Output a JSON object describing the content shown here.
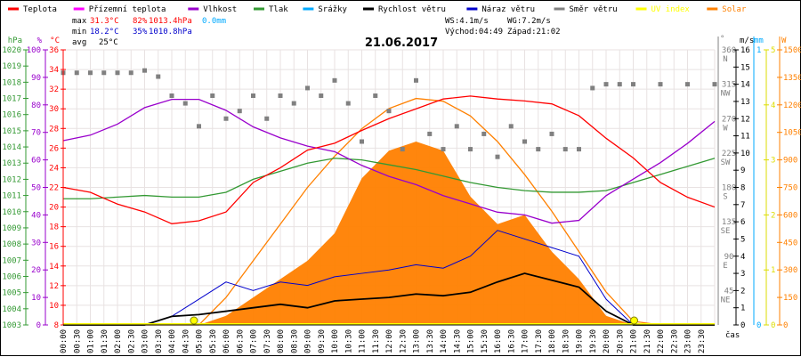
{
  "chart_data": {
    "type": "line",
    "title": "21.06.2017",
    "legend": [
      {
        "name": "Teplota",
        "color": "#ff0000"
      },
      {
        "name": "Přízemní teplota",
        "color": "#ff00ff"
      },
      {
        "name": "Vlhkost",
        "color": "#9900cc"
      },
      {
        "name": "Tlak",
        "color": "#339933"
      },
      {
        "name": "Srážky",
        "color": "#00aaff"
      },
      {
        "name": "Rychlost větru",
        "color": "#000000"
      },
      {
        "name": "Náraz větru",
        "color": "#0000cc"
      },
      {
        "name": "Směr větru",
        "color": "#808080"
      },
      {
        "name": "UV index",
        "color": "#ffff00"
      },
      {
        "name": "Solar",
        "color": "#ff8000"
      }
    ],
    "stats": {
      "max_label": "max",
      "max_temp": "31.3°C",
      "max_hum": "82%",
      "max_press": "1013.4hPa",
      "rain": "0.0mm",
      "min_label": "min",
      "min_temp": "18.2°C",
      "min_hum": "35%",
      "min_press": "1010.8hPa",
      "avg_label": "avg",
      "avg_temp": "25°C",
      "ws": "WS:4.1m/s",
      "wg": "WG:7.2m/s",
      "sunrise": "Východ:04:49",
      "sunset": "Západ:21:02"
    },
    "axes": {
      "hpa": {
        "label": "hPa",
        "min": 1003,
        "max": 1020,
        "step": 1
      },
      "pct": {
        "label": "%",
        "min": 0,
        "max": 100,
        "step": 10
      },
      "temp": {
        "label": "°C",
        "min": 8,
        "max": 36,
        "step": 2
      },
      "dir": {
        "label": "°",
        "ticks": [
          {
            "v": 360,
            "l": "N"
          },
          {
            "v": 315,
            "l": "NW"
          },
          {
            "v": 270,
            "l": "W"
          },
          {
            "v": 225,
            "l": "SW"
          },
          {
            "v": 180,
            "l": "S"
          },
          {
            "v": 135,
            "l": "SE"
          },
          {
            "v": 90,
            "l": "E"
          },
          {
            "v": 45,
            "l": "NE"
          }
        ]
      },
      "wind": {
        "label": "m/s",
        "min": 0,
        "max": 16,
        "step": 1
      },
      "rain": {
        "label": "mm",
        "min": 0,
        "max": 1
      },
      "uv": {
        "label": "",
        "min": 0,
        "max": 5,
        "step": 1
      },
      "solar": {
        "label": "W",
        "min": 0,
        "max": 1500,
        "step": 150
      },
      "xlabel": "čas"
    },
    "x_labels": [
      "00:00",
      "00:30",
      "01:00",
      "01:30",
      "02:00",
      "02:30",
      "03:00",
      "03:30",
      "04:00",
      "04:30",
      "05:00",
      "05:30",
      "06:00",
      "06:30",
      "07:00",
      "07:30",
      "08:00",
      "08:30",
      "09:00",
      "09:30",
      "10:00",
      "10:30",
      "11:00",
      "11:30",
      "12:00",
      "12:30",
      "13:00",
      "13:30",
      "14:00",
      "14:30",
      "15:00",
      "15:30",
      "16:00",
      "16:30",
      "17:00",
      "17:30",
      "18:00",
      "18:30",
      "19:00",
      "19:30",
      "20:00",
      "20:30",
      "21:00",
      "21:30",
      "22:00",
      "22:30",
      "23:00",
      "23:30"
    ],
    "hours": [
      0,
      1,
      2,
      3,
      4,
      5,
      6,
      7,
      8,
      9,
      10,
      11,
      12,
      13,
      14,
      15,
      16,
      17,
      18,
      19,
      20,
      21,
      22,
      23,
      24
    ],
    "temperature": [
      22,
      21.5,
      20.3,
      19.5,
      18.3,
      18.6,
      19.5,
      22.5,
      24,
      25.8,
      26.5,
      27.8,
      29,
      30,
      31,
      31.3,
      31,
      30.8,
      30.5,
      29.3,
      27,
      25,
      22.5,
      21,
      20
    ],
    "humidity": [
      67,
      69,
      73,
      79,
      82,
      82,
      78,
      72,
      68,
      65,
      63,
      58,
      54,
      51,
      47,
      44,
      41,
      40,
      37,
      38,
      47,
      53,
      59,
      66,
      74
    ],
    "pressure": [
      1010.8,
      1010.8,
      1010.9,
      1011,
      1010.9,
      1010.9,
      1011.2,
      1012,
      1012.5,
      1013,
      1013.3,
      1013.2,
      1012.9,
      1012.6,
      1012.2,
      1011.8,
      1011.5,
      1011.3,
      1011.2,
      1011.2,
      1011.3,
      1011.8,
      1012.3,
      1012.8,
      1013.3
    ],
    "wind_speed": [
      0,
      0,
      0,
      0,
      0.5,
      0.6,
      0.8,
      1,
      1.2,
      1,
      1.4,
      1.5,
      1.6,
      1.8,
      1.7,
      1.9,
      2.5,
      3,
      2.6,
      2.2,
      0.8,
      0,
      0,
      0,
      0
    ],
    "wind_gust": [
      0,
      0,
      0,
      0,
      0.5,
      1.5,
      2.5,
      2,
      2.5,
      2.3,
      2.8,
      3,
      3.2,
      3.5,
      3.3,
      4,
      5.5,
      5,
      4.5,
      4,
      1.5,
      0,
      0,
      0,
      0
    ],
    "wind_dir": [
      [
        0,
        330
      ],
      [
        0.5,
        330
      ],
      [
        1,
        330
      ],
      [
        1.5,
        330
      ],
      [
        2,
        330
      ],
      [
        2.5,
        330
      ],
      [
        3,
        333
      ],
      [
        3.5,
        325
      ],
      [
        4,
        300
      ],
      [
        4.5,
        290
      ],
      [
        5,
        260
      ],
      [
        5.5,
        300
      ],
      [
        6,
        270
      ],
      [
        6.5,
        280
      ],
      [
        7,
        300
      ],
      [
        7.5,
        270
      ],
      [
        8,
        300
      ],
      [
        8.5,
        290
      ],
      [
        9,
        310
      ],
      [
        9.5,
        300
      ],
      [
        10,
        320
      ],
      [
        10.5,
        290
      ],
      [
        11,
        240
      ],
      [
        11.5,
        300
      ],
      [
        12,
        280
      ],
      [
        12.5,
        230
      ],
      [
        13,
        320
      ],
      [
        13.5,
        250
      ],
      [
        14,
        230
      ],
      [
        14.5,
        260
      ],
      [
        15,
        230
      ],
      [
        15.5,
        250
      ],
      [
        16,
        220
      ],
      [
        16.5,
        260
      ],
      [
        17,
        240
      ],
      [
        17.5,
        230
      ],
      [
        18,
        250
      ],
      [
        18.5,
        230
      ],
      [
        19,
        230
      ],
      [
        19.5,
        310
      ],
      [
        20,
        315
      ],
      [
        20.5,
        315
      ],
      [
        21,
        315
      ],
      [
        22,
        315
      ],
      [
        23,
        315
      ],
      [
        24,
        315
      ]
    ],
    "solar_theoretical": [
      0,
      0,
      0,
      0,
      0,
      0,
      150,
      350,
      550,
      750,
      920,
      1070,
      1180,
      1235,
      1220,
      1140,
      1000,
      820,
      620,
      400,
      180,
      20,
      0,
      0,
      0
    ],
    "solar": [
      0,
      0,
      0,
      0,
      0,
      0,
      50,
      150,
      250,
      350,
      500,
      800,
      950,
      1000,
      950,
      700,
      550,
      600,
      400,
      250,
      50,
      0,
      0,
      0,
      0
    ],
    "uv_index": [
      0,
      0,
      0,
      0,
      0,
      0,
      0,
      0,
      0,
      0,
      0,
      0,
      0,
      0,
      0,
      0,
      0,
      0,
      0,
      0,
      0,
      0,
      0,
      0,
      0
    ],
    "rain": [
      0,
      0,
      0,
      0,
      0,
      0,
      0,
      0,
      0,
      0,
      0,
      0,
      0,
      0,
      0,
      0,
      0,
      0,
      0,
      0,
      0,
      0,
      0,
      0,
      0
    ]
  }
}
